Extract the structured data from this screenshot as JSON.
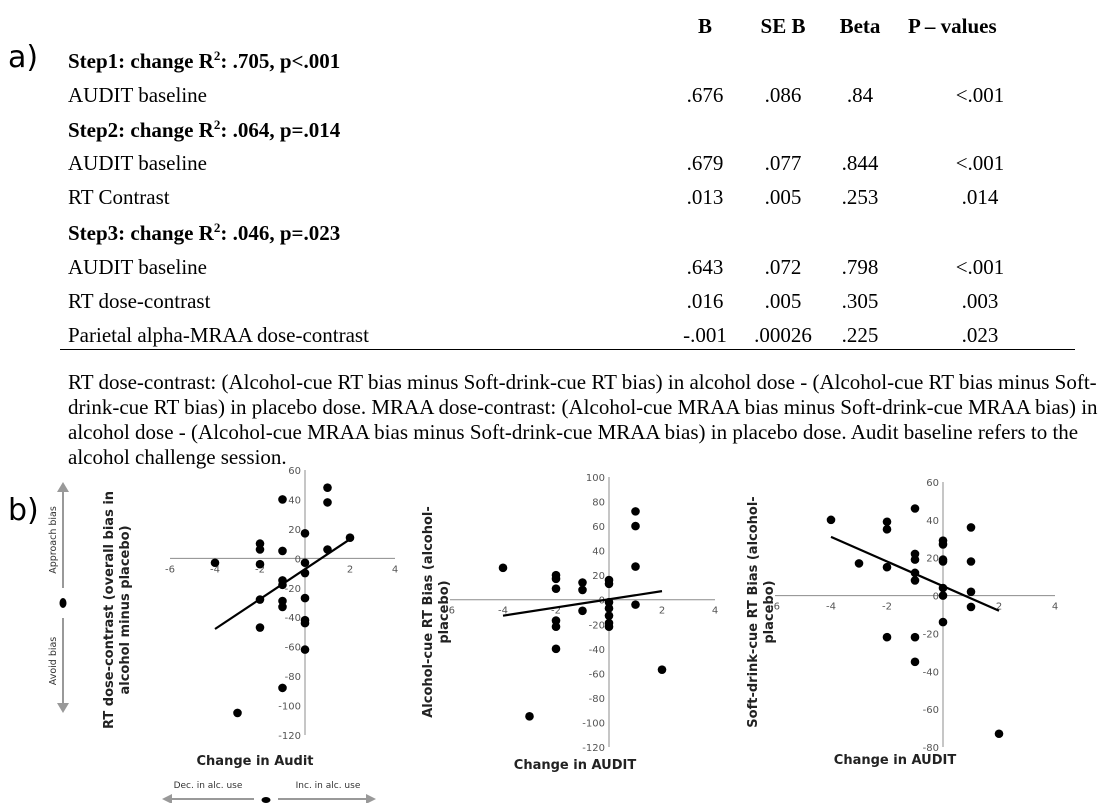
{
  "panel_a_label": "a)",
  "panel_b_label": "b)",
  "table": {
    "headers": [
      "B",
      "SE B",
      "Beta",
      "P – values"
    ],
    "steps": [
      {
        "title_prefix": "Step1: change R",
        "title_sup": "2",
        "title_suffix": ": .705, p<.001",
        "rows": [
          {
            "label": "AUDIT baseline",
            "b": ".676",
            "se": ".086",
            "beta": ".84",
            "p": "<.001"
          }
        ]
      },
      {
        "title_prefix": "Step2: change R",
        "title_sup": "2",
        "title_suffix": ": .064, p=.014",
        "rows": [
          {
            "label": "AUDIT baseline",
            "b": ".679",
            "se": ".077",
            "beta": ".844",
            "p": "<.001"
          },
          {
            "label": "RT Contrast",
            "b": ".013",
            "se": ".005",
            "beta": ".253",
            "p": ".014"
          }
        ]
      },
      {
        "title_prefix": "Step3: change R",
        "title_sup": "2",
        "title_suffix": ": .046, p=.023",
        "rows": [
          {
            "label": "AUDIT baseline",
            "b": ".643",
            "se": ".072",
            "beta": ".798",
            "p": "<.001"
          },
          {
            "label": "RT dose-contrast",
            "b": ".016",
            "se": ".005",
            "beta": ".305",
            "p": ".003"
          },
          {
            "label": "Parietal alpha-MRAA dose-contrast",
            "b": "-.001",
            "se": ".00026",
            "beta": ".225",
            "p": ".023"
          }
        ]
      }
    ],
    "note": "RT dose-contrast: (Alcohol-cue RT bias minus Soft-drink-cue RT bias) in alcohol dose - (Alcohol-cue RT bias minus Soft-drink-cue RT bias) in placebo dose. MRAA dose-contrast: (Alcohol-cue MRAA bias minus Soft-drink-cue MRAA bias) in alcohol dose - (Alcohol-cue MRAA bias minus Soft-drink-cue MRAA bias) in placebo dose. Audit baseline refers to the alcohol challenge session."
  },
  "side_arrows": {
    "approach_label": "Approach bias",
    "avoid_label": "Avoid bias",
    "dec_label": "Dec. in alc. use",
    "inc_label": "Inc. in alc. use"
  },
  "chart_data": [
    {
      "type": "scatter",
      "xlabel": "Change in Audit",
      "ylabel": "RT dose-contrast (overall bias in alcohol minus placebo)",
      "xlim": [
        -6,
        4
      ],
      "ylim": [
        -120,
        60
      ],
      "xticks": [
        -6,
        -4,
        -2,
        0,
        2,
        4
      ],
      "yticks": [
        -120,
        -100,
        -80,
        -60,
        -40,
        -20,
        0,
        20,
        40,
        60
      ],
      "points": [
        [
          -4,
          -3
        ],
        [
          -3,
          -105
        ],
        [
          -2,
          10
        ],
        [
          -2,
          6
        ],
        [
          -2,
          -4
        ],
        [
          -2,
          -28
        ],
        [
          -2,
          -47
        ],
        [
          -1,
          40
        ],
        [
          -1,
          5
        ],
        [
          -1,
          -15
        ],
        [
          -1,
          -18
        ],
        [
          -1,
          -29
        ],
        [
          -1,
          -33
        ],
        [
          -1,
          -88
        ],
        [
          0,
          17
        ],
        [
          0,
          -3
        ],
        [
          0,
          -10
        ],
        [
          0,
          -27
        ],
        [
          0,
          -42
        ],
        [
          0,
          -44
        ],
        [
          0,
          -62
        ],
        [
          1,
          48
        ],
        [
          1,
          38
        ],
        [
          1,
          6
        ],
        [
          2,
          14
        ]
      ],
      "trendline": {
        "x": [
          -4,
          2
        ],
        "y": [
          -48,
          13
        ]
      },
      "grid": false,
      "legend": "none"
    },
    {
      "type": "scatter",
      "xlabel": "Change in AUDIT",
      "ylabel": "Alcohol-cue RT Bias (alcohol-placebo)",
      "xlim": [
        -6,
        4
      ],
      "ylim": [
        -120,
        100
      ],
      "xticks": [
        -6,
        -4,
        -2,
        0,
        2,
        4
      ],
      "yticks": [
        -120,
        -100,
        -80,
        -60,
        -40,
        -20,
        0,
        20,
        40,
        60,
        80,
        100
      ],
      "points": [
        [
          -4,
          26
        ],
        [
          -3,
          -95
        ],
        [
          -2,
          20
        ],
        [
          -2,
          17
        ],
        [
          -2,
          9
        ],
        [
          -2,
          -17
        ],
        [
          -2,
          -22
        ],
        [
          -2,
          -40
        ],
        [
          -1,
          14
        ],
        [
          -1,
          8
        ],
        [
          -1,
          -9
        ],
        [
          0,
          16
        ],
        [
          0,
          13
        ],
        [
          0,
          -2
        ],
        [
          0,
          -7
        ],
        [
          0,
          -13
        ],
        [
          0,
          -19
        ],
        [
          0,
          -22
        ],
        [
          1,
          72
        ],
        [
          1,
          60
        ],
        [
          1,
          27
        ],
        [
          1,
          -4
        ],
        [
          2,
          -57
        ]
      ],
      "trendline": {
        "x": [
          -4,
          2
        ],
        "y": [
          -13,
          7
        ]
      },
      "grid": false,
      "legend": "none"
    },
    {
      "type": "scatter",
      "xlabel": "Change in AUDIT",
      "ylabel": "Soft-drink-cue RT Bias (alcohol-placebo)",
      "xlim": [
        -6,
        4
      ],
      "ylim": [
        -80,
        60
      ],
      "xticks": [
        -6,
        -4,
        -2,
        0,
        2,
        4
      ],
      "yticks": [
        -80,
        -60,
        -40,
        -20,
        0,
        20,
        40,
        60
      ],
      "points": [
        [
          -4,
          40
        ],
        [
          -3,
          17
        ],
        [
          -2,
          39
        ],
        [
          -2,
          35
        ],
        [
          -2,
          15
        ],
        [
          -2,
          -22
        ],
        [
          -1,
          46
        ],
        [
          -1,
          22
        ],
        [
          -1,
          19
        ],
        [
          -1,
          12
        ],
        [
          -1,
          8
        ],
        [
          -1,
          -22
        ],
        [
          -1,
          -35
        ],
        [
          0,
          29
        ],
        [
          0,
          27
        ],
        [
          0,
          19
        ],
        [
          0,
          18
        ],
        [
          0,
          4
        ],
        [
          0,
          0
        ],
        [
          0,
          -14
        ],
        [
          1,
          36
        ],
        [
          1,
          18
        ],
        [
          1,
          2
        ],
        [
          1,
          -6
        ],
        [
          2,
          -73
        ]
      ],
      "trendline": {
        "x": [
          -4,
          2
        ],
        "y": [
          31,
          -8
        ]
      },
      "grid": false,
      "legend": "none"
    }
  ]
}
